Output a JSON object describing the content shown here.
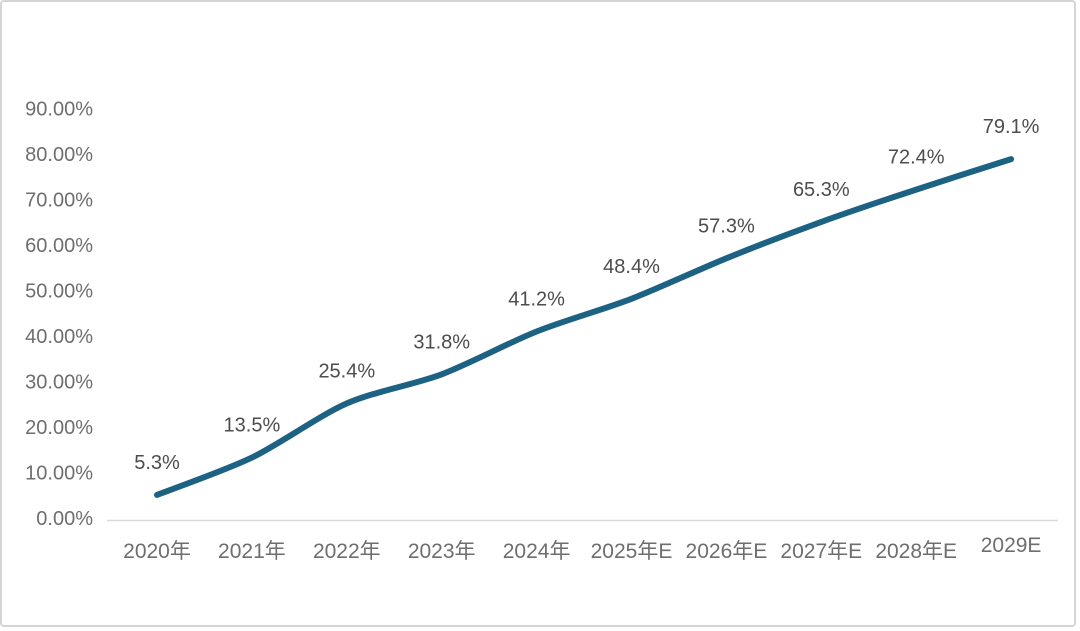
{
  "chart_data": {
    "type": "line",
    "title": "",
    "xlabel": "",
    "ylabel": "",
    "legend": "none",
    "grid": false,
    "categories": [
      "2020年",
      "2021年",
      "2022年",
      "2023年",
      "2024年",
      "2025年E",
      "2026年E",
      "2027年E",
      "2028年E",
      "2029E"
    ],
    "values": [
      5.3,
      13.5,
      25.4,
      31.8,
      41.2,
      48.4,
      57.3,
      65.3,
      72.4,
      79.1
    ],
    "data_labels": [
      "5.3%",
      "13.5%",
      "25.4%",
      "31.8%",
      "41.2%",
      "48.4%",
      "57.3%",
      "65.3%",
      "72.4%",
      "79.1%"
    ],
    "y_axis": {
      "ticks": [
        "0.00%",
        "10.00%",
        "20.00%",
        "30.00%",
        "40.00%",
        "50.00%",
        "60.00%",
        "70.00%",
        "80.00%",
        "90.00%"
      ],
      "tick_values": [
        0,
        10,
        20,
        30,
        40,
        50,
        60,
        70,
        80,
        90
      ],
      "range": [
        0,
        90
      ]
    },
    "colors": {
      "line": "#1d6283",
      "data_label": "#4d4d4d",
      "axis_label": "#6e6e6e",
      "axis_line": "#d9d9d9",
      "background": "#ffffff",
      "border": "#d5d5d5"
    }
  }
}
